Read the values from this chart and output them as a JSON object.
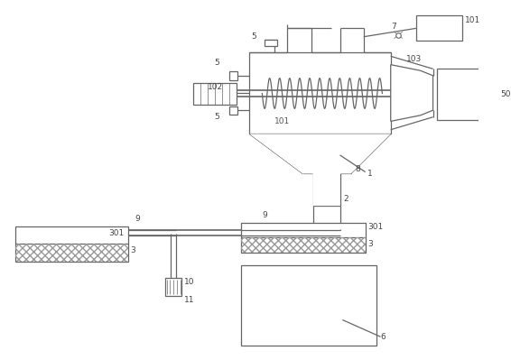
{
  "lc": "#666666",
  "lw": 0.9,
  "lw_thin": 0.5,
  "fs": 6.5,
  "fc": "white"
}
